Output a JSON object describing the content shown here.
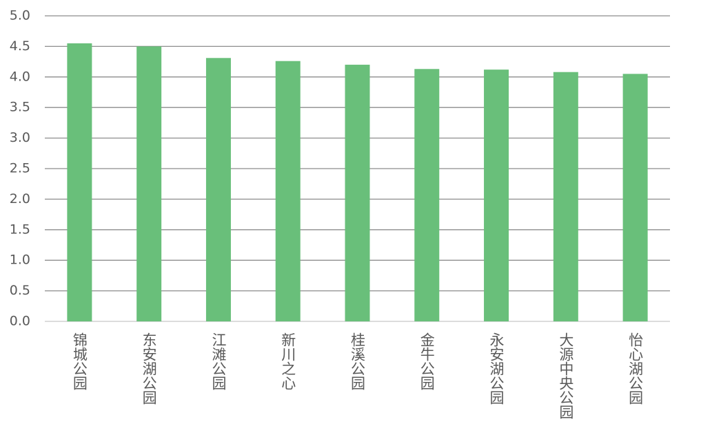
{
  "chart_data": {
    "type": "bar",
    "categories": [
      "锦城公园",
      "东安湖公园",
      "江滩公园",
      "新川之心",
      "桂溪公园",
      "金牛公园",
      "永安湖公园",
      "大源中央公园",
      "怡心湖公园"
    ],
    "values": [
      4.55,
      4.5,
      4.31,
      4.26,
      4.2,
      4.13,
      4.12,
      4.08,
      4.05
    ],
    "color": "#69bf7a",
    "ylim": [
      0,
      5
    ],
    "yticks": [
      {
        "value": 0,
        "label": "0.0"
      },
      {
        "value": 0.5,
        "label": "0.5"
      },
      {
        "value": 1,
        "label": "1.0"
      },
      {
        "value": 1.5,
        "label": "1.5"
      },
      {
        "value": 2,
        "label": "2.0"
      },
      {
        "value": 2.5,
        "label": "2.5"
      },
      {
        "value": 3,
        "label": "3.0"
      },
      {
        "value": 3.5,
        "label": "3.5"
      },
      {
        "value": 4,
        "label": "4.0"
      },
      {
        "value": 4.5,
        "label": "4.5"
      },
      {
        "value": 5,
        "label": "5.0"
      }
    ],
    "grid": true
  }
}
